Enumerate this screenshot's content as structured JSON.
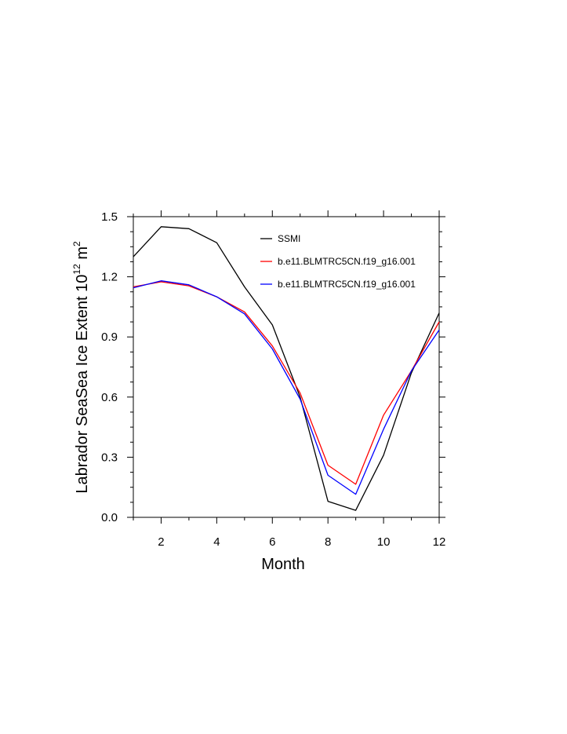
{
  "chart_data": {
    "type": "line",
    "xlabel": "Month",
    "ylabel_main": "Labrador SeaSea Ice Extent 10",
    "ylabel_exp": "12",
    "ylabel_unit": " m",
    "ylabel_unit_exp": "2",
    "xlim": [
      1,
      12
    ],
    "ylim": [
      0,
      1.5
    ],
    "xticks": [
      2,
      4,
      6,
      8,
      10,
      12
    ],
    "xtick_labels": [
      "2",
      "4",
      "6",
      "8",
      "10",
      "12"
    ],
    "yticks": [
      0,
      0.3,
      0.6,
      0.9,
      1.2,
      1.5
    ],
    "ytick_labels": [
      "0.0",
      "0.3",
      "0.6",
      "0.9",
      "1.2",
      "1.5"
    ],
    "x": [
      1,
      2,
      3,
      4,
      5,
      6,
      7,
      8,
      9,
      10,
      11,
      12
    ],
    "legend_position": "top-right",
    "series": [
      {
        "name": "SSMI",
        "color": "#000000",
        "values": [
          1.3,
          1.45,
          1.44,
          1.37,
          1.15,
          0.96,
          0.6,
          0.08,
          0.035,
          0.31,
          0.72,
          1.02
        ]
      },
      {
        "name": "b.e11.BLMTRC5CN.f19_g16.001",
        "color": "#ff0000",
        "values": [
          1.15,
          1.175,
          1.155,
          1.1,
          1.025,
          0.855,
          0.62,
          0.26,
          0.165,
          0.51,
          0.73,
          0.975
        ]
      },
      {
        "name": "b.e11.BLMTRC5CN.f19_g16.001",
        "color": "#0000ff",
        "values": [
          1.145,
          1.18,
          1.16,
          1.1,
          1.015,
          0.84,
          0.59,
          0.21,
          0.115,
          0.44,
          0.73,
          0.935
        ]
      }
    ]
  }
}
